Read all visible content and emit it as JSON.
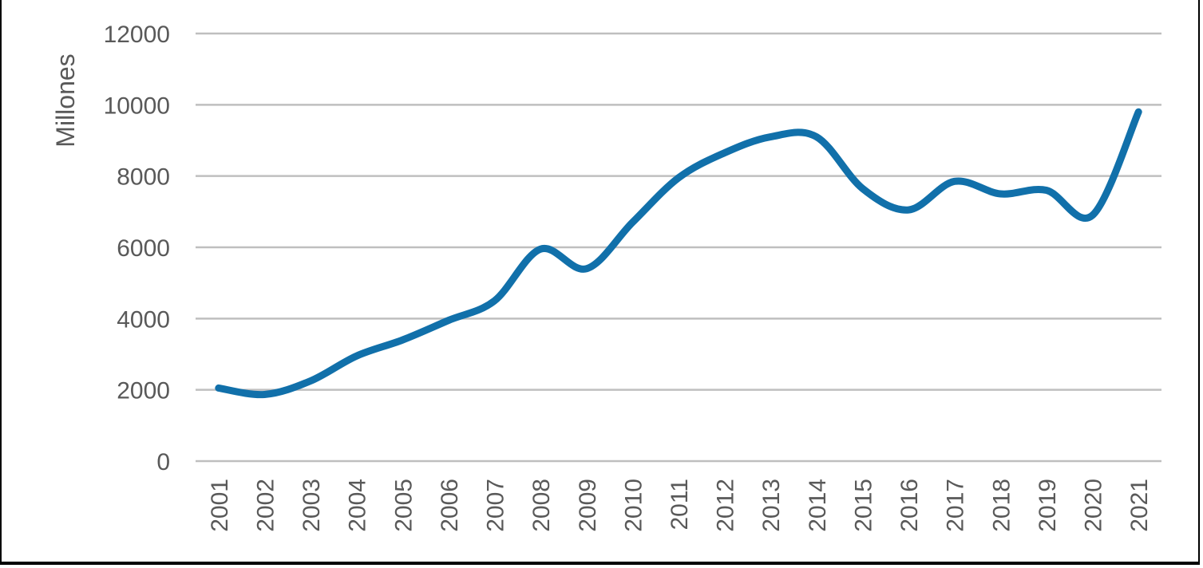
{
  "chart_data": {
    "type": "line",
    "title": "",
    "xlabel": "",
    "ylabel": "Millones",
    "x": [
      "2001",
      "2002",
      "2003",
      "2004",
      "2005",
      "2006",
      "2007",
      "2008",
      "2009",
      "2010",
      "2011",
      "2012",
      "2013",
      "2014",
      "2015",
      "2016",
      "2017",
      "2018",
      "2019",
      "2020",
      "2021"
    ],
    "series": [
      {
        "values": [
          2050,
          1870,
          2250,
          2950,
          3400,
          3950,
          4500,
          5950,
          5400,
          6700,
          7950,
          8650,
          9100,
          9100,
          7650,
          7050,
          7850,
          7500,
          7600,
          6900,
          9800
        ],
        "color": "#1170aa"
      }
    ],
    "y_ticks": [
      "0",
      "2000",
      "4000",
      "6000",
      "8000",
      "10000",
      "12000"
    ],
    "ylim": [
      0,
      12000
    ],
    "grid": true,
    "legend": "none",
    "smooth": true
  }
}
